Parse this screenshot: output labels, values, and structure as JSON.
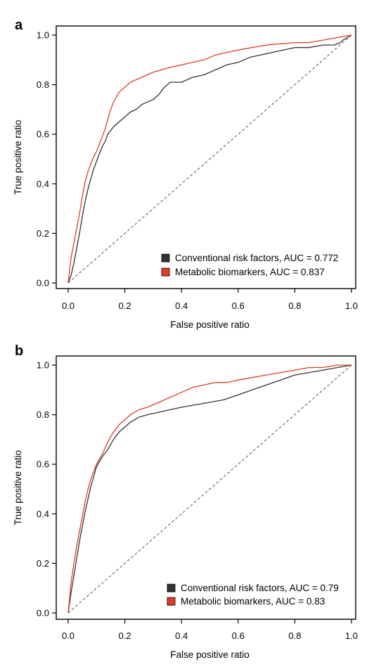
{
  "chart_data": [
    {
      "type": "line",
      "panel_label": "a",
      "xlabel": "False positive ratio",
      "ylabel": "True positive ratio",
      "xlim": [
        0,
        1
      ],
      "ylim": [
        0,
        1
      ],
      "x_ticks": [
        "0.0",
        "0.2",
        "0.4",
        "0.6",
        "0.8",
        "1.0"
      ],
      "y_ticks": [
        "0.0",
        "0.2",
        "0.4",
        "0.6",
        "0.8",
        "1.0"
      ],
      "grid": false,
      "legend_position": "bottom-right",
      "reference_line": {
        "from": [
          0,
          0
        ],
        "to": [
          1,
          1
        ],
        "style": "dashed"
      },
      "series": [
        {
          "name": "Conventional risk factors, AUC = 0.772",
          "color": "#333333",
          "points": [
            [
              0,
              0
            ],
            [
              0.01,
              0.03
            ],
            [
              0.02,
              0.08
            ],
            [
              0.03,
              0.14
            ],
            [
              0.04,
              0.2
            ],
            [
              0.05,
              0.27
            ],
            [
              0.06,
              0.33
            ],
            [
              0.07,
              0.38
            ],
            [
              0.08,
              0.42
            ],
            [
              0.09,
              0.46
            ],
            [
              0.1,
              0.49
            ],
            [
              0.11,
              0.52
            ],
            [
              0.12,
              0.55
            ],
            [
              0.13,
              0.57
            ],
            [
              0.14,
              0.6
            ],
            [
              0.16,
              0.63
            ],
            [
              0.18,
              0.65
            ],
            [
              0.2,
              0.67
            ],
            [
              0.22,
              0.69
            ],
            [
              0.24,
              0.7
            ],
            [
              0.26,
              0.72
            ],
            [
              0.28,
              0.73
            ],
            [
              0.3,
              0.74
            ],
            [
              0.32,
              0.76
            ],
            [
              0.34,
              0.79
            ],
            [
              0.36,
              0.81
            ],
            [
              0.4,
              0.81
            ],
            [
              0.44,
              0.83
            ],
            [
              0.48,
              0.84
            ],
            [
              0.52,
              0.86
            ],
            [
              0.56,
              0.88
            ],
            [
              0.6,
              0.89
            ],
            [
              0.64,
              0.91
            ],
            [
              0.68,
              0.92
            ],
            [
              0.72,
              0.93
            ],
            [
              0.76,
              0.94
            ],
            [
              0.8,
              0.95
            ],
            [
              0.85,
              0.95
            ],
            [
              0.9,
              0.96
            ],
            [
              0.94,
              0.96
            ],
            [
              0.96,
              0.97
            ],
            [
              0.97,
              0.98
            ],
            [
              1.0,
              1.0
            ]
          ]
        },
        {
          "name": "Metabolic biomarkers, AUC = 0.837",
          "color": "#e03c28",
          "points": [
            [
              0,
              0
            ],
            [
              0.005,
              0.05
            ],
            [
              0.01,
              0.1
            ],
            [
              0.02,
              0.16
            ],
            [
              0.03,
              0.22
            ],
            [
              0.04,
              0.28
            ],
            [
              0.05,
              0.35
            ],
            [
              0.06,
              0.41
            ],
            [
              0.07,
              0.45
            ],
            [
              0.08,
              0.48
            ],
            [
              0.09,
              0.51
            ],
            [
              0.1,
              0.53
            ],
            [
              0.11,
              0.56
            ],
            [
              0.12,
              0.59
            ],
            [
              0.13,
              0.62
            ],
            [
              0.14,
              0.66
            ],
            [
              0.15,
              0.7
            ],
            [
              0.16,
              0.73
            ],
            [
              0.18,
              0.77
            ],
            [
              0.2,
              0.79
            ],
            [
              0.22,
              0.81
            ],
            [
              0.24,
              0.82
            ],
            [
              0.26,
              0.83
            ],
            [
              0.28,
              0.84
            ],
            [
              0.3,
              0.85
            ],
            [
              0.33,
              0.86
            ],
            [
              0.36,
              0.87
            ],
            [
              0.4,
              0.88
            ],
            [
              0.44,
              0.89
            ],
            [
              0.48,
              0.9
            ],
            [
              0.52,
              0.92
            ],
            [
              0.56,
              0.93
            ],
            [
              0.6,
              0.94
            ],
            [
              0.65,
              0.95
            ],
            [
              0.7,
              0.96
            ],
            [
              0.8,
              0.97
            ],
            [
              0.85,
              0.97
            ],
            [
              0.9,
              0.98
            ],
            [
              0.95,
              0.99
            ],
            [
              1.0,
              1.0
            ]
          ]
        }
      ]
    },
    {
      "type": "line",
      "panel_label": "b",
      "xlabel": "False positive ratio",
      "ylabel": "True positive ratio",
      "xlim": [
        0,
        1
      ],
      "ylim": [
        0,
        1
      ],
      "x_ticks": [
        "0.0",
        "0.2",
        "0.4",
        "0.6",
        "0.8",
        "1.0"
      ],
      "y_ticks": [
        "0.0",
        "0.2",
        "0.4",
        "0.6",
        "0.8",
        "1.0"
      ],
      "grid": false,
      "legend_position": "bottom-right",
      "reference_line": {
        "from": [
          0,
          0
        ],
        "to": [
          1,
          1
        ],
        "style": "dashed"
      },
      "series": [
        {
          "name": "Conventional risk factors, AUC = 0.79",
          "color": "#333333",
          "points": [
            [
              0,
              0
            ],
            [
              0.005,
              0.04
            ],
            [
              0.01,
              0.08
            ],
            [
              0.02,
              0.15
            ],
            [
              0.03,
              0.22
            ],
            [
              0.04,
              0.29
            ],
            [
              0.05,
              0.35
            ],
            [
              0.06,
              0.41
            ],
            [
              0.07,
              0.46
            ],
            [
              0.08,
              0.51
            ],
            [
              0.09,
              0.55
            ],
            [
              0.1,
              0.59
            ],
            [
              0.12,
              0.63
            ],
            [
              0.14,
              0.66
            ],
            [
              0.16,
              0.7
            ],
            [
              0.18,
              0.73
            ],
            [
              0.2,
              0.75
            ],
            [
              0.22,
              0.77
            ],
            [
              0.25,
              0.79
            ],
            [
              0.28,
              0.8
            ],
            [
              0.32,
              0.81
            ],
            [
              0.36,
              0.82
            ],
            [
              0.4,
              0.83
            ],
            [
              0.45,
              0.84
            ],
            [
              0.5,
              0.85
            ],
            [
              0.55,
              0.86
            ],
            [
              0.6,
              0.88
            ],
            [
              0.65,
              0.9
            ],
            [
              0.7,
              0.92
            ],
            [
              0.75,
              0.94
            ],
            [
              0.8,
              0.96
            ],
            [
              0.85,
              0.97
            ],
            [
              0.9,
              0.98
            ],
            [
              0.95,
              0.99
            ],
            [
              1.0,
              1.0
            ]
          ]
        },
        {
          "name": "Metabolic biomarkers, AUC = 0.83",
          "color": "#e03c28",
          "points": [
            [
              0,
              0
            ],
            [
              0.005,
              0.06
            ],
            [
              0.01,
              0.12
            ],
            [
              0.02,
              0.2
            ],
            [
              0.03,
              0.27
            ],
            [
              0.04,
              0.33
            ],
            [
              0.05,
              0.39
            ],
            [
              0.06,
              0.45
            ],
            [
              0.07,
              0.5
            ],
            [
              0.08,
              0.54
            ],
            [
              0.09,
              0.57
            ],
            [
              0.1,
              0.6
            ],
            [
              0.12,
              0.64
            ],
            [
              0.14,
              0.69
            ],
            [
              0.16,
              0.73
            ],
            [
              0.18,
              0.76
            ],
            [
              0.2,
              0.78
            ],
            [
              0.22,
              0.8
            ],
            [
              0.25,
              0.82
            ],
            [
              0.28,
              0.83
            ],
            [
              0.32,
              0.85
            ],
            [
              0.36,
              0.87
            ],
            [
              0.4,
              0.89
            ],
            [
              0.44,
              0.91
            ],
            [
              0.48,
              0.92
            ],
            [
              0.52,
              0.93
            ],
            [
              0.56,
              0.93
            ],
            [
              0.6,
              0.94
            ],
            [
              0.65,
              0.95
            ],
            [
              0.7,
              0.96
            ],
            [
              0.75,
              0.97
            ],
            [
              0.8,
              0.98
            ],
            [
              0.85,
              0.99
            ],
            [
              0.9,
              0.99
            ],
            [
              0.95,
              1.0
            ],
            [
              1.0,
              1.0
            ]
          ]
        }
      ]
    }
  ]
}
